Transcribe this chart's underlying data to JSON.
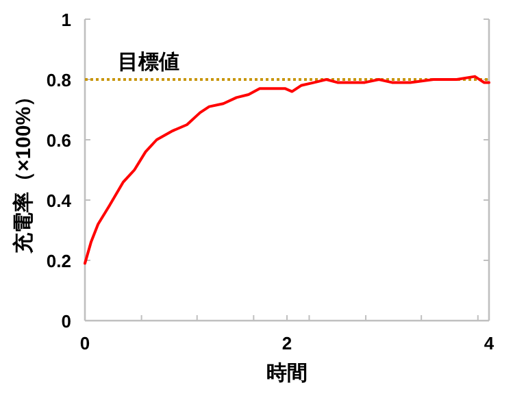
{
  "chart_data": {
    "type": "line",
    "xlabel": "時間",
    "ylabel": "充電率（×100%）",
    "x": [
      0,
      0.06,
      0.13,
      0.24,
      0.38,
      0.49,
      0.6,
      0.71,
      0.87,
      1.01,
      1.14,
      1.23,
      1.37,
      1.5,
      1.62,
      1.73,
      1.87,
      1.98,
      2.05,
      2.14,
      2.27,
      2.39,
      2.5,
      2.64,
      2.77,
      2.91,
      3.04,
      3.22,
      3.45,
      3.68,
      3.86,
      3.95,
      4
    ],
    "series": [
      {
        "color": "#ff0000",
        "values": [
          0.19,
          0.26,
          0.32,
          0.38,
          0.46,
          0.5,
          0.56,
          0.6,
          0.63,
          0.65,
          0.69,
          0.71,
          0.72,
          0.74,
          0.75,
          0.77,
          0.77,
          0.77,
          0.76,
          0.78,
          0.79,
          0.8,
          0.79,
          0.79,
          0.79,
          0.8,
          0.79,
          0.79,
          0.8,
          0.8,
          0.81,
          0.79,
          0.79
        ]
      }
    ],
    "xlim": [
      0,
      4
    ],
    "ylim": [
      0,
      1
    ],
    "xticks": [
      0,
      {
        "value": 0.56,
        "label": null
      },
      {
        "value": 1.11,
        "label": null
      },
      {
        "value": 1.67,
        "label": null
      },
      2,
      {
        "value": 2.22,
        "label": null
      },
      {
        "value": 2.78,
        "label": null
      },
      {
        "value": 3.33,
        "label": null
      },
      {
        "value": 3.89,
        "label": null
      },
      4
    ],
    "yticks": [
      0,
      0.2,
      0.4,
      0.6,
      0.8,
      1
    ],
    "ref_lines": [
      {
        "axis": "y",
        "value": 0.8,
        "label": "目標値",
        "color": "#c8960c",
        "line_style": "dotted"
      }
    ],
    "grid": false,
    "marker": "none",
    "line_style": "solid"
  }
}
